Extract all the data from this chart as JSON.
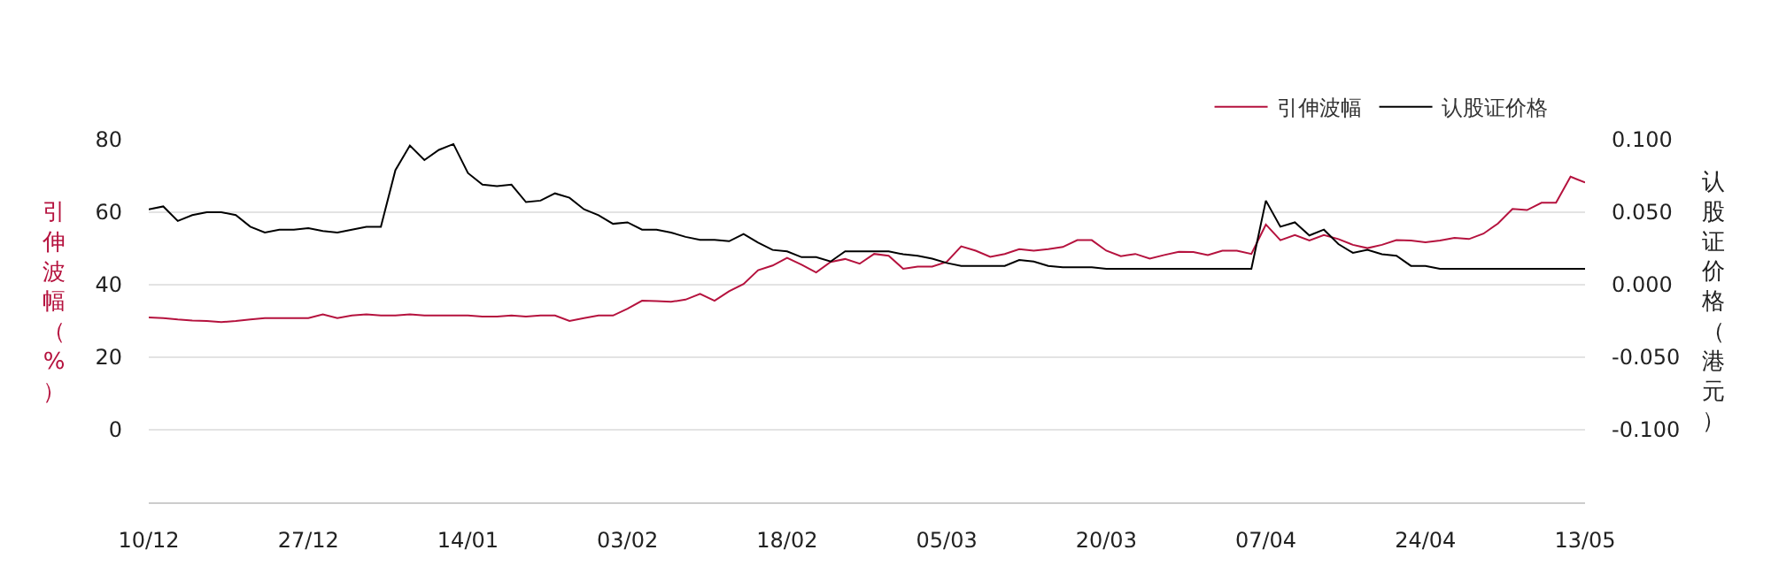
{
  "chart_data": {
    "type": "line",
    "categories": [
      "10/12",
      null,
      null,
      null,
      null,
      null,
      null,
      null,
      null,
      null,
      null,
      "27/12",
      null,
      null,
      null,
      null,
      null,
      null,
      null,
      null,
      null,
      null,
      "14/01",
      null,
      null,
      null,
      null,
      null,
      null,
      null,
      null,
      null,
      null,
      "03/02",
      null,
      null,
      null,
      null,
      null,
      null,
      null,
      null,
      null,
      null,
      "18/02",
      null,
      null,
      null,
      null,
      null,
      null,
      null,
      null,
      null,
      null,
      "05/03",
      null,
      null,
      null,
      null,
      null,
      null,
      null,
      null,
      null,
      null,
      "20/03",
      null,
      null,
      null,
      null,
      null,
      null,
      null,
      null,
      null,
      null,
      "07/04",
      null,
      null,
      null,
      null,
      null,
      null,
      null,
      null,
      null,
      null,
      "24/04",
      null,
      null,
      null,
      null,
      null,
      null,
      null,
      null,
      null,
      null,
      "13/05"
    ],
    "series": [
      {
        "name": "引伸波幅",
        "color": "#b5123e",
        "values": [
          31,
          30.8,
          30.4,
          30.1,
          30,
          29.7,
          30,
          30.4,
          30.8,
          30.8,
          30.8,
          30.8,
          31.8,
          30.8,
          31.5,
          31.8,
          31.5,
          31.5,
          31.8,
          31.5,
          31.5,
          31.5,
          31.5,
          31.2,
          31.2,
          31.5,
          31.2,
          31.5,
          31.5,
          30,
          30.8,
          31.5,
          31.5,
          33.4,
          35.6,
          35.5,
          35.3,
          35.9,
          37.5,
          35.6,
          38.2,
          40.2,
          44,
          45.3,
          47.4,
          45.5,
          43.4,
          46.3,
          47.1,
          45.8,
          48.5,
          48,
          44.4,
          45,
          45,
          46.3,
          50.6,
          49.4,
          47.7,
          48.5,
          49.8,
          49.4,
          49.8,
          50.4,
          52.3,
          52.3,
          49.4,
          47.9,
          48.5,
          47.2,
          48.2,
          49.1,
          49,
          48.2,
          49.4,
          49.4,
          48.5,
          56.6,
          52.3,
          53.7,
          52.2,
          53.7,
          52.6,
          51,
          50.1,
          51,
          52.3,
          52.2,
          51.7,
          52.2,
          52.9,
          52.6,
          54.1,
          56.9,
          60.9,
          60.6,
          62.6,
          62.6,
          69.8,
          68.2
        ]
      },
      {
        "name": "认股证价格",
        "color": "#000000",
        "axis": "y2",
        "values": [
          0.052,
          0.054,
          0.044,
          0.048,
          0.05,
          0.05,
          0.048,
          0.04,
          0.036,
          0.038,
          0.038,
          0.039,
          0.037,
          0.036,
          0.038,
          0.04,
          0.04,
          0.079,
          0.096,
          0.086,
          0.093,
          0.097,
          0.077,
          0.069,
          0.068,
          0.069,
          0.057,
          0.058,
          0.063,
          0.06,
          0.052,
          0.048,
          0.042,
          0.043,
          0.038,
          0.038,
          0.036,
          0.033,
          0.031,
          0.031,
          0.03,
          0.035,
          0.029,
          0.024,
          0.023,
          0.019,
          0.019,
          0.016,
          0.023,
          0.023,
          0.023,
          0.023,
          0.021,
          0.02,
          0.018,
          0.015,
          0.013,
          0.013,
          0.013,
          0.013,
          0.017,
          0.016,
          0.013,
          0.012,
          0.012,
          0.012,
          0.011,
          0.011,
          0.011,
          0.011,
          0.011,
          0.011,
          0.011,
          0.011,
          0.011,
          0.011,
          0.011,
          0.058,
          0.04,
          0.043,
          0.034,
          0.038,
          0.028,
          0.022,
          0.024,
          0.021,
          0.02,
          0.013,
          0.013,
          0.011,
          0.011,
          0.011,
          0.011,
          0.011,
          0.011,
          0.011,
          0.011,
          0.011,
          0.011,
          0.011
        ]
      }
    ],
    "ylabel": "引伸波幅（%）",
    "y2label": "认股证价格（港元）",
    "ylim": [
      -20,
      80
    ],
    "yticks": [
      0,
      20,
      40,
      60,
      80
    ],
    "y2lim": [
      -0.15,
      0.1
    ],
    "y2ticks": [
      {
        "value": -0.1,
        "label": "-0.100"
      },
      {
        "value": -0.05,
        "label": "-0.050"
      },
      {
        "value": 0,
        "label": "0.000"
      },
      {
        "value": 0.05,
        "label": "0.050"
      },
      {
        "value": 0.1,
        "label": "0.100"
      }
    ],
    "grid": "y",
    "legend": "top right",
    "marker": "none",
    "line_style": "solid"
  }
}
